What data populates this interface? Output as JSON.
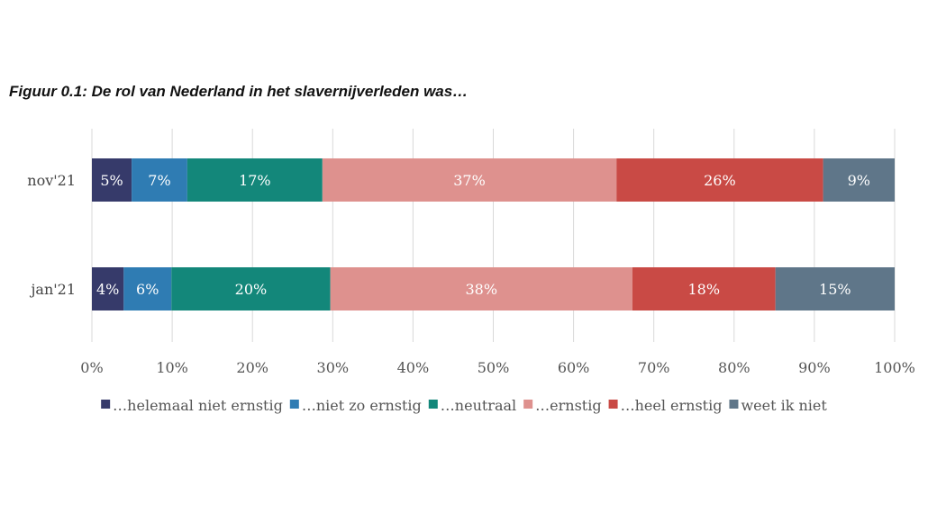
{
  "chart_data": {
    "type": "bar",
    "orientation": "horizontal",
    "stacked": true,
    "title": "Figuur 0.1: De rol van Nederland in het slavernijverleden was…",
    "categories": [
      "nov'21",
      "jan'21"
    ],
    "series": [
      {
        "name": "…helemaal niet ernstig",
        "color": "#363a6a",
        "values": [
          5,
          4
        ],
        "labels": [
          "5%",
          "4%"
        ]
      },
      {
        "name": "…niet zo ernstig",
        "color": "#2f7cb3",
        "values": [
          7,
          6
        ],
        "labels": [
          "7%",
          "6%"
        ]
      },
      {
        "name": "…neutraal",
        "color": "#13877a",
        "values": [
          17,
          20
        ],
        "labels": [
          "17%",
          "20%"
        ]
      },
      {
        "name": "…ernstig",
        "color": "#de918e",
        "values": [
          37,
          38
        ],
        "labels": [
          "37%",
          "38%"
        ]
      },
      {
        "name": "…heel ernstig",
        "color": "#c94a45",
        "values": [
          26,
          18
        ],
        "labels": [
          "26%",
          "18%"
        ]
      },
      {
        "name": "weet ik niet",
        "color": "#5f7689",
        "values": [
          9,
          15
        ],
        "labels": [
          "9%",
          "15%"
        ]
      }
    ],
    "xlim": [
      0,
      100
    ],
    "xticks": [
      "0%",
      "10%",
      "20%",
      "30%",
      "40%",
      "50%",
      "60%",
      "70%",
      "80%",
      "90%",
      "100%"
    ],
    "grid": true,
    "legend": "bottom"
  }
}
